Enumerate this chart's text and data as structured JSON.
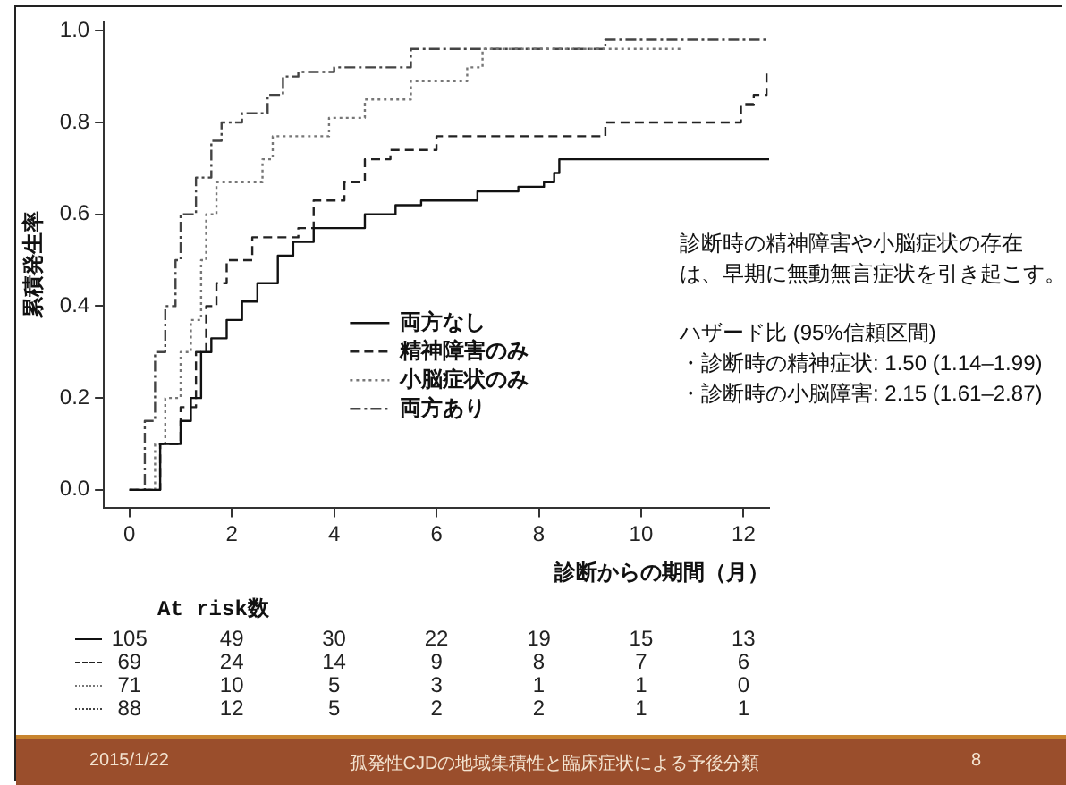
{
  "chart_data": {
    "type": "step",
    "xlabel": "診断からの期間（月）",
    "ylabel": "累積発生率",
    "xlim": [
      -0.5,
      12.5
    ],
    "ylim": [
      -0.04,
      1.02
    ],
    "xticks": [
      0,
      2,
      4,
      6,
      8,
      10,
      12
    ],
    "yticks": [
      {
        "value": 0,
        "label": "0.0"
      },
      {
        "value": 0.2,
        "label": "0.2"
      },
      {
        "value": 0.4,
        "label": "0.4"
      },
      {
        "value": 0.6,
        "label": "0.6"
      },
      {
        "value": 0.8,
        "label": "0.8"
      },
      {
        "value": 1,
        "label": "1.0"
      }
    ],
    "grid": false,
    "legend": "center",
    "marker": "none",
    "series": [
      {
        "name": "両方なし",
        "color": "#111111",
        "line_style": "solid",
        "x": [
          0,
          0.6,
          1.0,
          1.2,
          1.4,
          1.6,
          1.9,
          2.2,
          2.5,
          2.9,
          3.2,
          3.6,
          4.6,
          5.2,
          5.7,
          6.8,
          7.6,
          8.1,
          8.3,
          8.4,
          12.5
        ],
        "values": [
          0,
          0.1,
          0.15,
          0.2,
          0.3,
          0.33,
          0.37,
          0.41,
          0.45,
          0.51,
          0.54,
          0.57,
          0.6,
          0.62,
          0.63,
          0.65,
          0.66,
          0.67,
          0.69,
          0.72,
          0.72
        ]
      },
      {
        "name": "精神障害のみ",
        "color": "#222222",
        "line_style": "dashed",
        "x": [
          0,
          0.6,
          1.0,
          1.3,
          1.5,
          1.7,
          1.9,
          2.4,
          3.3,
          3.6,
          4.2,
          4.6,
          5.1,
          6.0,
          9.3,
          11.95,
          12.2,
          12.45
        ],
        "values": [
          0,
          0.1,
          0.18,
          0.3,
          0.4,
          0.45,
          0.5,
          0.55,
          0.57,
          0.63,
          0.67,
          0.72,
          0.74,
          0.77,
          0.8,
          0.84,
          0.86,
          0.91
        ]
      },
      {
        "name": "小脳症状のみ",
        "color": "#777777",
        "line_style": "dotted",
        "x": [
          0,
          0.5,
          0.7,
          1.0,
          1.2,
          1.4,
          1.5,
          1.7,
          2.6,
          2.8,
          3.9,
          4.6,
          5.5,
          6.6,
          6.9,
          10.8
        ],
        "values": [
          0,
          0.1,
          0.2,
          0.3,
          0.37,
          0.5,
          0.6,
          0.67,
          0.72,
          0.77,
          0.81,
          0.85,
          0.89,
          0.92,
          0.96,
          0.96
        ]
      },
      {
        "name": "両方あり",
        "color": "#444444",
        "line_style": "dashdot",
        "x": [
          0,
          0.3,
          0.5,
          0.7,
          0.9,
          1.0,
          1.3,
          1.6,
          1.8,
          2.2,
          2.7,
          3.0,
          3.3,
          4.0,
          5.5,
          9.3,
          12.5
        ],
        "values": [
          0,
          0.15,
          0.3,
          0.4,
          0.5,
          0.6,
          0.68,
          0.76,
          0.8,
          0.82,
          0.86,
          0.9,
          0.91,
          0.92,
          0.96,
          0.98,
          0.98
        ]
      }
    ],
    "annotations": [
      "診断時の精神障害や小脳症状の存在",
      "は、早期に無動無言症状を引き起こす。",
      "ハザード比 (95%信頼区間)",
      "・診断時の精神症状: 1.50 (1.14–1.99)",
      "・診断時の小脳障害: 2.15 (1.61–2.87)",
      "At risk数",
      "105 49 30 22 19 15 13",
      "69 24 14 9 8 7 6",
      "71 10 5 3 1 1 0",
      "88 12 5 2 2 1 1",
      "2015/1/22",
      "孤発性CJDの地域集積性と臨床症状による予後分類",
      "8"
    ]
  }
}
